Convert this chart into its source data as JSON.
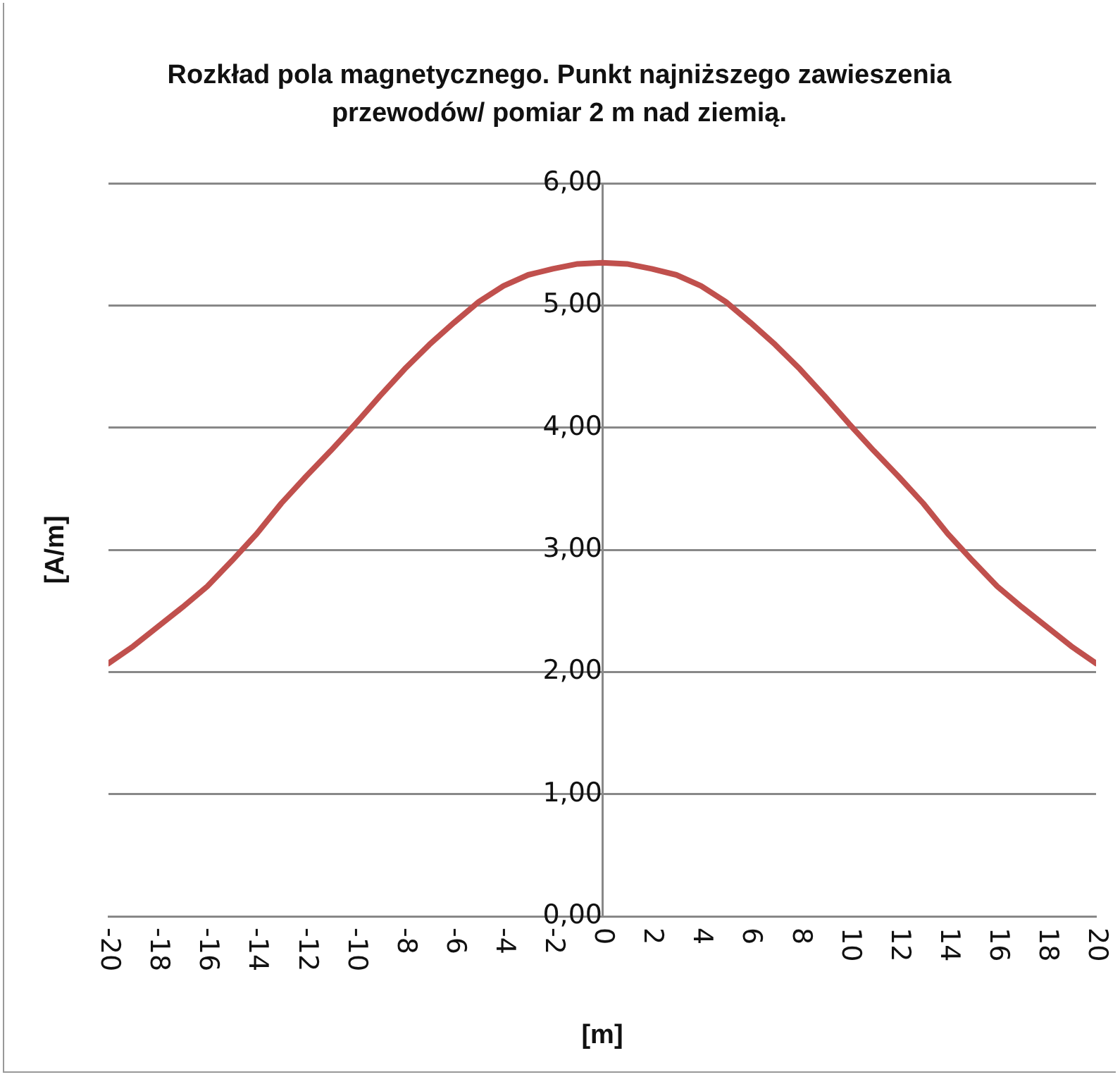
{
  "chart_data": {
    "type": "line",
    "title": "Rozkład pola magnetycznego. Punkt najniższego zawieszenia przewodów/ pomiar 2 m nad ziemią.",
    "xlabel": "[m]",
    "ylabel": "[A/m]",
    "x": [
      -20,
      -19,
      -18,
      -17,
      -16,
      -15,
      -14,
      -13,
      -12,
      -11,
      -10,
      -9,
      -8,
      -7,
      -6,
      -5,
      -4,
      -3,
      -2,
      -1,
      0,
      1,
      2,
      3,
      4,
      5,
      6,
      7,
      8,
      9,
      10,
      11,
      12,
      13,
      14,
      15,
      16,
      17,
      18,
      19,
      20
    ],
    "series": [
      {
        "color": "#c0504d",
        "values": [
          2.07,
          2.21,
          2.37,
          2.53,
          2.7,
          2.91,
          3.13,
          3.38,
          3.6,
          3.81,
          4.03,
          4.26,
          4.48,
          4.68,
          4.86,
          5.03,
          5.16,
          5.25,
          5.3,
          5.34,
          5.35,
          5.34,
          5.3,
          5.25,
          5.16,
          5.03,
          4.86,
          4.68,
          4.48,
          4.26,
          4.03,
          3.81,
          3.6,
          3.38,
          3.13,
          2.91,
          2.7,
          2.53,
          2.37,
          2.21,
          2.07
        ]
      }
    ],
    "xlim": [
      -20,
      20
    ],
    "xticks": [
      -20,
      -18,
      -16,
      -14,
      -12,
      -10,
      -8,
      -6,
      -4,
      -2,
      0,
      2,
      4,
      6,
      8,
      10,
      12,
      14,
      16,
      18,
      20
    ],
    "ylim": [
      0,
      6
    ],
    "yticks": [
      {
        "value": 0,
        "label": "0,00"
      },
      {
        "value": 1,
        "label": "1,00"
      },
      {
        "value": 2,
        "label": "2,00"
      },
      {
        "value": 3,
        "label": "3,00"
      },
      {
        "value": 4,
        "label": "4,00"
      },
      {
        "value": 5,
        "label": "5,00"
      },
      {
        "value": 6,
        "label": "6,00"
      }
    ],
    "grid": "y"
  }
}
